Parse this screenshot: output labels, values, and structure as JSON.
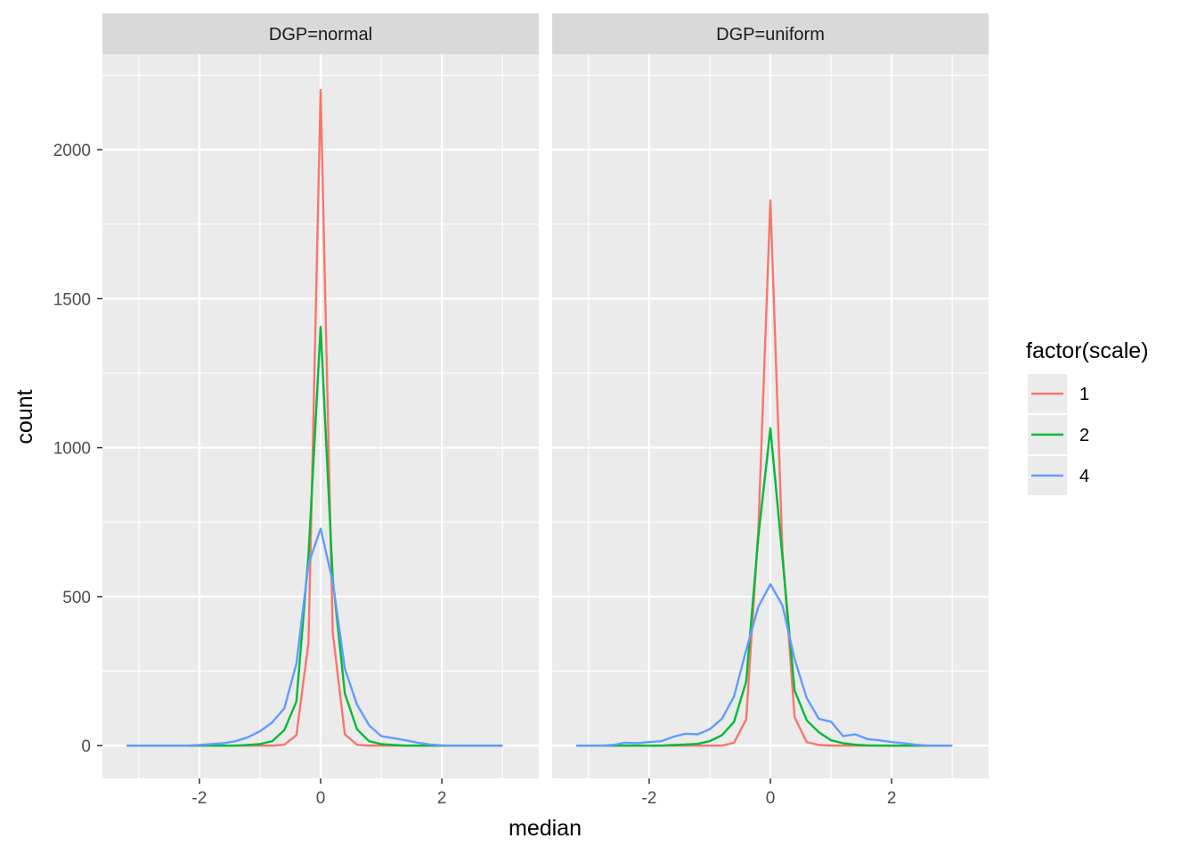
{
  "chart_data": {
    "type": "line",
    "xlabel": "median",
    "ylabel": "count",
    "xlim": [
      -3.6,
      3.6
    ],
    "ylim": [
      -110,
      2320
    ],
    "x_ticks": [
      -2,
      0,
      2
    ],
    "x_tick_labels": [
      "-2",
      "0",
      "2"
    ],
    "y_ticks": [
      0,
      500,
      1000,
      1500,
      2000
    ],
    "y_tick_labels": [
      "0",
      "500",
      "1000",
      "1500",
      "2000"
    ],
    "grid": true,
    "legend": {
      "title": "factor(scale)",
      "position": "right",
      "entries": [
        "1",
        "2",
        "4"
      ]
    },
    "colors": {
      "1": "#F8766D",
      "2": "#00BA38",
      "4": "#619CFF"
    },
    "x": [
      -3.2,
      -3.0,
      -2.8,
      -2.6,
      -2.4,
      -2.2,
      -2.0,
      -1.8,
      -1.6,
      -1.4,
      -1.2,
      -1.0,
      -0.8,
      -0.6,
      -0.4,
      -0.2,
      0.0,
      0.2,
      0.4,
      0.6,
      0.8,
      1.0,
      1.2,
      1.4,
      1.6,
      1.8,
      2.0,
      2.2,
      2.4,
      2.6,
      2.8,
      3.0
    ],
    "panels": [
      {
        "strip": "DGP=normal",
        "series": [
          {
            "name": "1",
            "values": [
              0,
              0,
              0,
              0,
              0,
              0,
              0,
              0,
              0,
              0,
              0,
              0,
              0,
              3,
              35,
              345,
              2200,
              380,
              38,
              3,
              0,
              0,
              0,
              0,
              0,
              0,
              0,
              0,
              0,
              0,
              0,
              0
            ]
          },
          {
            "name": "2",
            "values": [
              0,
              0,
              0,
              0,
              0,
              0,
              0,
              0,
              0,
              0,
              2,
              5,
              15,
              52,
              148,
              640,
              1405,
              560,
              175,
              55,
              15,
              5,
              2,
              0,
              0,
              0,
              0,
              0,
              0,
              0,
              0,
              0
            ]
          },
          {
            "name": "4",
            "values": [
              0,
              0,
              0,
              0,
              0,
              0,
              2,
              5,
              8,
              15,
              28,
              48,
              78,
              125,
              275,
              610,
              728,
              550,
              258,
              138,
              68,
              32,
              25,
              18,
              10,
              4,
              1,
              0,
              0,
              0,
              0,
              0
            ]
          }
        ]
      },
      {
        "strip": "DGP=uniform",
        "series": [
          {
            "name": "1",
            "values": [
              0,
              0,
              0,
              0,
              0,
              0,
              0,
              0,
              0,
              0,
              0,
              0,
              0,
              10,
              88,
              720,
              1830,
              650,
              95,
              12,
              2,
              0,
              0,
              0,
              0,
              0,
              0,
              0,
              0,
              0,
              0,
              0
            ]
          },
          {
            "name": "2",
            "values": [
              0,
              0,
              0,
              0,
              0,
              0,
              0,
              0,
              2,
              4,
              6,
              15,
              35,
              80,
              215,
              700,
              1065,
              630,
              185,
              85,
              45,
              18,
              8,
              3,
              1,
              0,
              0,
              0,
              0,
              0,
              0,
              0
            ]
          },
          {
            "name": "4",
            "values": [
              0,
              0,
              0,
              2,
              10,
              8,
              12,
              15,
              30,
              40,
              38,
              55,
              90,
              165,
              320,
              465,
              542,
              470,
              290,
              160,
              90,
              80,
              32,
              38,
              22,
              18,
              12,
              8,
              3,
              0,
              0,
              0
            ]
          }
        ]
      }
    ]
  }
}
